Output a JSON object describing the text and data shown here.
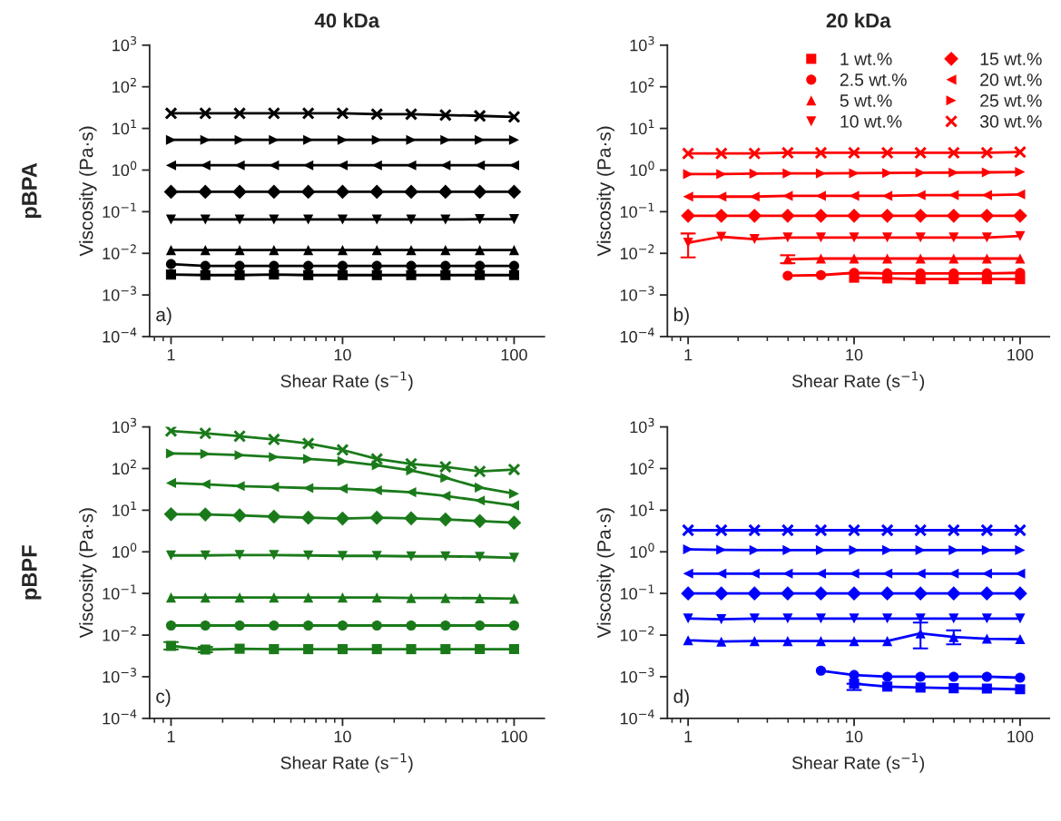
{
  "chart_data": [
    {
      "type": "line",
      "title": "40 kDa",
      "xlabel": "Shear Rate (s$^{−1}$)",
      "ylabel": "Viscosity (Pa·s)",
      "annotations": [
        "a)",
        "pBPA"
      ],
      "log": "xy",
      "line_style": "solid",
      "grid": false,
      "legend": false,
      "x": [
        1,
        1.585,
        2.512,
        3.981,
        6.31,
        10,
        15.85,
        25.12,
        39.81,
        63.1,
        100
      ],
      "xlim": [
        0.75,
        150
      ],
      "xticks": [
        1,
        10,
        100
      ],
      "ylim": [
        0.0001,
        1000
      ],
      "yticks": [
        {
          "value": 0.0001,
          "label": "10$^{−4}$"
        },
        {
          "value": 0.001,
          "label": "10$^{−3}$"
        },
        {
          "value": 0.01,
          "label": "10$^{−2}$"
        },
        {
          "value": 0.1,
          "label": "10$^{−1}$"
        },
        {
          "value": 1,
          "label": "10$^{0}$"
        },
        {
          "value": 10,
          "label": "10$^{1}$"
        },
        {
          "value": 100,
          "label": "10$^{2}$"
        },
        {
          "value": 1000,
          "label": "10$^{3}$"
        }
      ],
      "series": [
        {
          "color": "#000000",
          "marker": "square",
          "values": [
            0.0031,
            0.003,
            0.003,
            0.0031,
            0.003,
            0.003,
            0.003,
            0.003,
            0.003,
            0.003,
            0.003
          ]
        },
        {
          "color": "#000000",
          "marker": "circle",
          "values": [
            0.0055,
            0.005,
            0.005,
            0.005,
            0.005,
            0.005,
            0.005,
            0.005,
            0.005,
            0.005,
            0.005
          ]
        },
        {
          "color": "#000000",
          "marker": "triangle",
          "values": [
            0.012,
            0.012,
            0.012,
            0.012,
            0.012,
            0.012,
            0.012,
            0.012,
            0.012,
            0.012,
            0.012
          ]
        },
        {
          "color": "#000000",
          "marker": "triangle-down",
          "values": [
            0.065,
            0.065,
            0.065,
            0.065,
            0.065,
            0.065,
            0.065,
            0.065,
            0.065,
            0.066,
            0.066
          ]
        },
        {
          "color": "#000000",
          "marker": "diamond",
          "values": [
            0.3,
            0.3,
            0.3,
            0.3,
            0.3,
            0.3,
            0.3,
            0.3,
            0.3,
            0.3,
            0.3
          ]
        },
        {
          "color": "#000000",
          "marker": "triangle-left",
          "values": [
            1.3,
            1.3,
            1.3,
            1.3,
            1.3,
            1.3,
            1.3,
            1.3,
            1.3,
            1.3,
            1.3
          ]
        },
        {
          "color": "#000000",
          "marker": "triangle-right",
          "values": [
            5.3,
            5.3,
            5.3,
            5.3,
            5.3,
            5.3,
            5.3,
            5.3,
            5.3,
            5.3,
            5.3
          ]
        },
        {
          "color": "#000000",
          "marker": "cross",
          "values": [
            23,
            23,
            23,
            23,
            23,
            23,
            22,
            22,
            21,
            20,
            19
          ]
        }
      ]
    },
    {
      "type": "line",
      "title": "20 kDa",
      "xlabel": "Shear Rate (s$^{−1}$)",
      "ylabel": "Viscosity (Pa·s)",
      "annotations": [
        "b)"
      ],
      "log": "xy",
      "line_style": "solid",
      "grid": false,
      "legend": "top right",
      "x": [
        1,
        1.585,
        2.512,
        3.981,
        6.31,
        10,
        15.85,
        25.12,
        39.81,
        63.1,
        100
      ],
      "xlim": [
        0.75,
        150
      ],
      "xticks": [
        1,
        10,
        100
      ],
      "ylim": [
        0.0001,
        1000
      ],
      "yticks": [
        {
          "value": 0.0001,
          "label": "10$^{−4}$"
        },
        {
          "value": 0.001,
          "label": "10$^{−3}$"
        },
        {
          "value": 0.01,
          "label": "10$^{−2}$"
        },
        {
          "value": 0.1,
          "label": "10$^{−1}$"
        },
        {
          "value": 1,
          "label": "10$^{0}$"
        },
        {
          "value": 10,
          "label": "10$^{1}$"
        },
        {
          "value": 100,
          "label": "10$^{2}$"
        },
        {
          "value": 1000,
          "label": "10$^{3}$"
        }
      ],
      "series": [
        {
          "name": "1 wt.%",
          "color": "#ff0000",
          "marker": "square",
          "values": [
            null,
            null,
            null,
            null,
            null,
            0.0026,
            0.0025,
            0.0024,
            0.0024,
            0.0024,
            0.0024
          ]
        },
        {
          "name": "2.5 wt.%",
          "color": "#ff0000",
          "marker": "circle",
          "values": [
            null,
            null,
            null,
            0.0029,
            0.003,
            0.0034,
            0.0033,
            0.0033,
            0.0033,
            0.0033,
            0.0034
          ]
        },
        {
          "name": "5 wt.%",
          "color": "#ff0000",
          "marker": "triangle",
          "values": [
            null,
            null,
            null,
            0.0072,
            0.0075,
            0.0075,
            0.0075,
            0.0075,
            0.0075,
            0.0075,
            0.0075
          ],
          "errors": [
            null,
            null,
            null,
            [
              0.0058,
              0.009
            ],
            null,
            null,
            null,
            null,
            null,
            null,
            null
          ]
        },
        {
          "name": "10 wt.%",
          "color": "#ff0000",
          "marker": "triangle-down",
          "values": [
            0.018,
            0.025,
            0.022,
            0.024,
            0.024,
            0.024,
            0.024,
            0.024,
            0.024,
            0.024,
            0.026
          ],
          "errors": [
            [
              0.008,
              0.03
            ],
            null,
            null,
            null,
            null,
            null,
            null,
            null,
            null,
            null,
            null
          ]
        },
        {
          "name": "15 wt.%",
          "color": "#ff0000",
          "marker": "diamond",
          "values": [
            0.08,
            0.08,
            0.08,
            0.08,
            0.08,
            0.08,
            0.08,
            0.08,
            0.08,
            0.08,
            0.08
          ]
        },
        {
          "name": "20 wt.%",
          "color": "#ff0000",
          "marker": "triangle-left",
          "values": [
            0.23,
            0.23,
            0.23,
            0.24,
            0.24,
            0.24,
            0.24,
            0.25,
            0.25,
            0.25,
            0.26
          ]
        },
        {
          "name": "25 wt.%",
          "color": "#ff0000",
          "marker": "triangle-right",
          "values": [
            0.8,
            0.8,
            0.82,
            0.83,
            0.83,
            0.84,
            0.85,
            0.86,
            0.87,
            0.88,
            0.9
          ]
        },
        {
          "name": "30 wt.%",
          "color": "#ff0000",
          "marker": "cross",
          "values": [
            2.5,
            2.5,
            2.5,
            2.6,
            2.6,
            2.6,
            2.6,
            2.6,
            2.6,
            2.6,
            2.7
          ]
        }
      ]
    },
    {
      "type": "line",
      "xlabel": "Shear Rate (s$^{−1}$)",
      "ylabel": "Viscosity (Pa·s)",
      "annotations": [
        "c)",
        "pBPF"
      ],
      "log": "xy",
      "line_style": "solid",
      "grid": false,
      "legend": false,
      "x": [
        1,
        1.585,
        2.512,
        3.981,
        6.31,
        10,
        15.85,
        25.12,
        39.81,
        63.1,
        100
      ],
      "xlim": [
        0.75,
        150
      ],
      "xticks": [
        1,
        10,
        100
      ],
      "ylim": [
        0.0001,
        1000
      ],
      "yticks": [
        {
          "value": 0.0001,
          "label": "10$^{−4}$"
        },
        {
          "value": 0.001,
          "label": "10$^{−3}$"
        },
        {
          "value": 0.01,
          "label": "10$^{−2}$"
        },
        {
          "value": 0.1,
          "label": "10$^{−1}$"
        },
        {
          "value": 1,
          "label": "10$^{0}$"
        },
        {
          "value": 10,
          "label": "10$^{1}$"
        },
        {
          "value": 100,
          "label": "10$^{2}$"
        },
        {
          "value": 1000,
          "label": "10$^{3}$"
        }
      ],
      "series": [
        {
          "color": "#1a7a1a",
          "marker": "square",
          "values": [
            0.0055,
            0.0045,
            0.0047,
            0.0046,
            0.0046,
            0.0046,
            0.0046,
            0.0046,
            0.0046,
            0.0046,
            0.0046
          ],
          "errors": [
            [
              0.0045,
              0.0068
            ],
            [
              0.0039,
              0.0052
            ],
            null,
            null,
            null,
            null,
            null,
            null,
            null,
            null,
            null
          ]
        },
        {
          "color": "#1a7a1a",
          "marker": "circle",
          "values": [
            0.017,
            0.017,
            0.017,
            0.017,
            0.017,
            0.017,
            0.017,
            0.017,
            0.017,
            0.017,
            0.017
          ]
        },
        {
          "color": "#1a7a1a",
          "marker": "triangle",
          "values": [
            0.08,
            0.08,
            0.08,
            0.08,
            0.08,
            0.08,
            0.08,
            0.078,
            0.078,
            0.077,
            0.075
          ]
        },
        {
          "color": "#1a7a1a",
          "marker": "triangle-down",
          "values": [
            0.82,
            0.82,
            0.84,
            0.84,
            0.82,
            0.8,
            0.8,
            0.78,
            0.78,
            0.76,
            0.72
          ]
        },
        {
          "color": "#1a7a1a",
          "marker": "diamond",
          "values": [
            8,
            7.9,
            7.5,
            7,
            6.6,
            6.3,
            6.6,
            6.4,
            6,
            5.5,
            5
          ]
        },
        {
          "color": "#1a7a1a",
          "marker": "triangle-left",
          "values": [
            45,
            42,
            38,
            36,
            34,
            33,
            30,
            27,
            22,
            17,
            13
          ]
        },
        {
          "color": "#1a7a1a",
          "marker": "triangle-right",
          "values": [
            230,
            225,
            210,
            190,
            170,
            150,
            120,
            90,
            60,
            35,
            25
          ]
        },
        {
          "color": "#1a7a1a",
          "marker": "cross",
          "values": [
            800,
            700,
            600,
            500,
            400,
            280,
            170,
            130,
            110,
            85,
            95
          ]
        }
      ]
    },
    {
      "type": "line",
      "xlabel": "Shear Rate (s$^{−1}$)",
      "ylabel": "Viscosity (Pa·s)",
      "annotations": [
        "d)"
      ],
      "log": "xy",
      "line_style": "solid",
      "grid": false,
      "legend": false,
      "x": [
        1,
        1.585,
        2.512,
        3.981,
        6.31,
        10,
        15.85,
        25.12,
        39.81,
        63.1,
        100
      ],
      "xlim": [
        0.75,
        150
      ],
      "xticks": [
        1,
        10,
        100
      ],
      "ylim": [
        0.0001,
        1000
      ],
      "yticks": [
        {
          "value": 0.0001,
          "label": "10$^{−4}$"
        },
        {
          "value": 0.001,
          "label": "10$^{−3}$"
        },
        {
          "value": 0.01,
          "label": "10$^{−2}$"
        },
        {
          "value": 0.1,
          "label": "10$^{−1}$"
        },
        {
          "value": 1,
          "label": "10$^{0}$"
        },
        {
          "value": 10,
          "label": "10$^{1}$"
        },
        {
          "value": 100,
          "label": "10$^{2}$"
        },
        {
          "value": 1000,
          "label": "10$^{3}$"
        }
      ],
      "series": [
        {
          "color": "#0000ff",
          "marker": "square",
          "values": [
            null,
            null,
            null,
            null,
            null,
            0.00068,
            0.00058,
            0.00055,
            0.00053,
            0.00052,
            0.0005
          ],
          "errors": [
            null,
            null,
            null,
            null,
            null,
            [
              0.00048,
              0.00068
            ],
            null,
            null,
            null,
            null,
            null
          ]
        },
        {
          "color": "#0000ff",
          "marker": "circle",
          "values": [
            null,
            null,
            null,
            null,
            0.0014,
            0.0011,
            0.001,
            0.001,
            0.001,
            0.001,
            0.00095
          ]
        },
        {
          "color": "#0000ff",
          "marker": "triangle",
          "values": [
            0.0075,
            0.007,
            0.0072,
            0.0072,
            0.0072,
            0.0072,
            0.0072,
            0.011,
            0.009,
            0.0082,
            0.008
          ],
          "errors": [
            null,
            null,
            null,
            null,
            null,
            null,
            null,
            [
              0.0048,
              0.02
            ],
            [
              0.006,
              0.013
            ],
            null,
            null
          ]
        },
        {
          "color": "#0000ff",
          "marker": "triangle-down",
          "values": [
            0.025,
            0.024,
            0.025,
            0.025,
            0.025,
            0.025,
            0.025,
            0.025,
            0.025,
            0.025,
            0.025
          ]
        },
        {
          "color": "#0000ff",
          "marker": "diamond",
          "values": [
            0.1,
            0.1,
            0.1,
            0.1,
            0.1,
            0.1,
            0.1,
            0.1,
            0.1,
            0.1,
            0.1
          ]
        },
        {
          "color": "#0000ff",
          "marker": "triangle-left",
          "values": [
            0.3,
            0.3,
            0.3,
            0.3,
            0.3,
            0.3,
            0.3,
            0.3,
            0.3,
            0.3,
            0.3
          ]
        },
        {
          "color": "#0000ff",
          "marker": "triangle-right",
          "values": [
            1.15,
            1.12,
            1.1,
            1.1,
            1.1,
            1.1,
            1.1,
            1.1,
            1.1,
            1.1,
            1.1
          ]
        },
        {
          "color": "#0000ff",
          "marker": "cross",
          "values": [
            3.3,
            3.3,
            3.3,
            3.3,
            3.3,
            3.3,
            3.3,
            3.3,
            3.3,
            3.3,
            3.3
          ]
        }
      ]
    }
  ]
}
